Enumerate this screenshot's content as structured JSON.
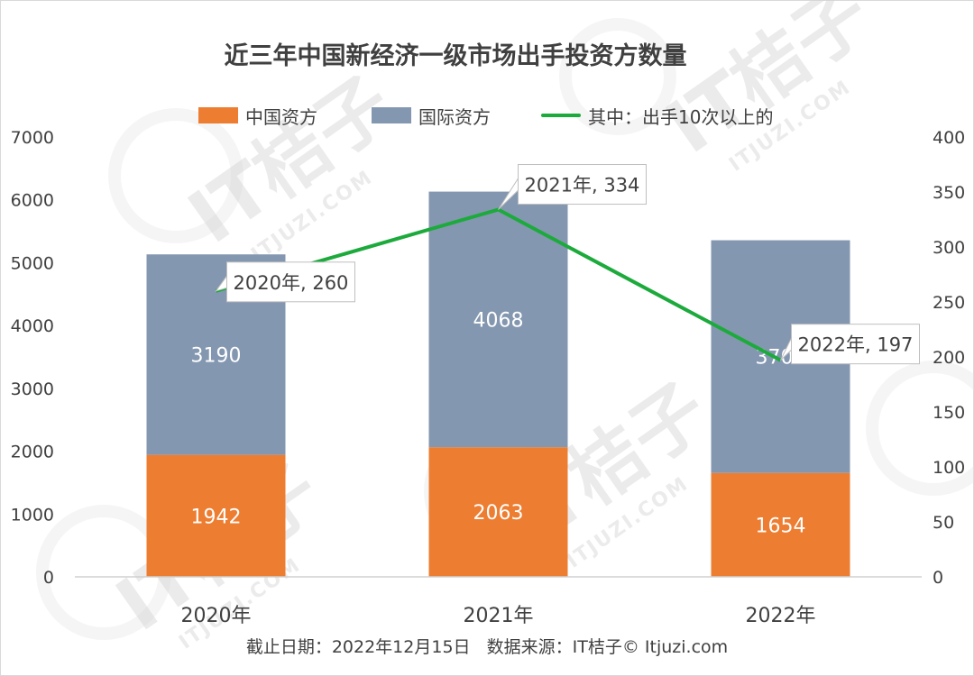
{
  "title": "近三年中国新经济一级市场出手投资方数量",
  "legend": [
    {
      "label": "中国资方",
      "color": "#ED7D31",
      "kind": "rect"
    },
    {
      "label": "国际资方",
      "color": "#8497B0",
      "kind": "rect"
    },
    {
      "label": "其中：出手10次以上的",
      "color": "#1DAA3C",
      "kind": "line"
    }
  ],
  "chart_data": {
    "type": "bar",
    "stacked": true,
    "categories": [
      "2020年",
      "2021年",
      "2022年"
    ],
    "series": [
      {
        "name": "中国资方",
        "values": [
          1942,
          2063,
          1654
        ],
        "color": "#ED7D31",
        "axis": "left"
      },
      {
        "name": "国际资方",
        "values": [
          3190,
          4068,
          3703
        ],
        "color": "#8497B0",
        "axis": "left"
      }
    ],
    "line_series": {
      "name": "其中：出手10次以上的",
      "values": [
        260,
        334,
        197
      ],
      "color": "#1DAA3C",
      "axis": "right",
      "labels": [
        "2020年, 260",
        "2021年, 334",
        "2022年, 197"
      ]
    },
    "y_left": {
      "min": 0,
      "max": 7000,
      "ticks": [
        "0",
        "1000",
        "2000",
        "3000",
        "4000",
        "5000",
        "6000",
        "7000"
      ]
    },
    "y_right": {
      "min": 0,
      "max": 400,
      "ticks": [
        "0",
        "50",
        "100",
        "150",
        "200",
        "250",
        "300",
        "350",
        "400"
      ]
    },
    "grid": false,
    "legend_position": "top"
  },
  "footer": "截止日期：2022年12月15日   数据来源：IT桔子© Itjuzi.com",
  "watermark": {
    "brand": "IT桔子",
    "site": "ITJUZI.COM"
  }
}
